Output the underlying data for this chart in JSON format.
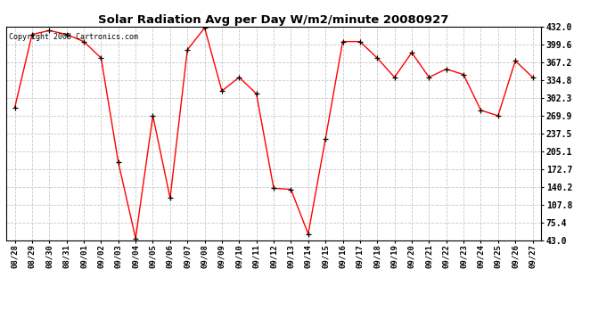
{
  "title": "Solar Radiation Avg per Day W/m2/minute 20080927",
  "copyright": "Copyright 2008 Cartronics.com",
  "line_color": "#ff0000",
  "bg_color": "#ffffff",
  "grid_color": "#c8c8c8",
  "x_labels": [
    "08/28",
    "08/29",
    "08/30",
    "08/31",
    "09/01",
    "09/02",
    "09/03",
    "09/04",
    "09/05",
    "09/06",
    "09/07",
    "09/08",
    "09/09",
    "09/10",
    "09/11",
    "09/12",
    "09/13",
    "09/14",
    "09/15",
    "09/16",
    "09/17",
    "09/18",
    "09/19",
    "09/20",
    "09/21",
    "09/22",
    "09/23",
    "09/24",
    "09/25",
    "09/26",
    "09/27"
  ],
  "y_values": [
    285,
    418,
    425,
    418,
    405,
    375,
    185,
    47,
    270,
    120,
    390,
    430,
    315,
    340,
    310,
    138,
    136,
    55,
    228,
    405,
    405,
    375,
    340,
    385,
    340,
    355,
    345,
    280,
    270,
    370,
    340
  ],
  "ylim": [
    43.0,
    432.0
  ],
  "yticks": [
    43.0,
    75.4,
    107.8,
    140.2,
    172.7,
    205.1,
    237.5,
    269.9,
    302.3,
    334.8,
    367.2,
    399.6,
    432.0
  ]
}
